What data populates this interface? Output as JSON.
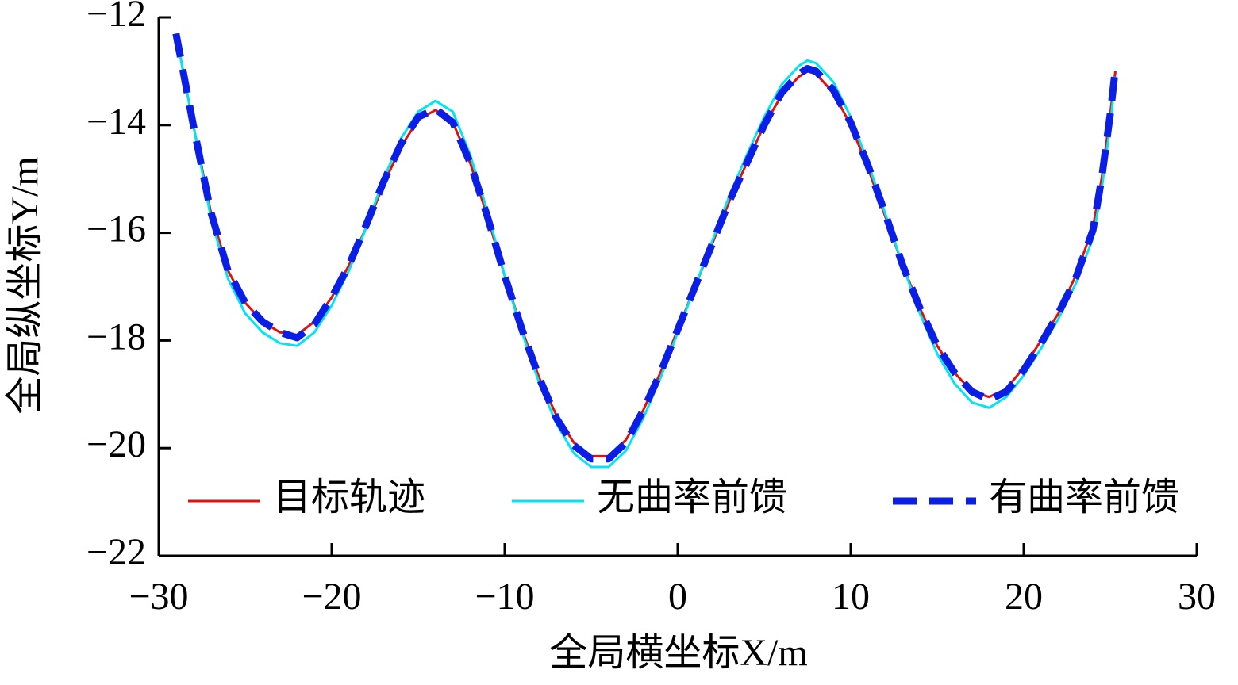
{
  "chart_data": {
    "type": "line",
    "xlabel": "全局横坐标X/m",
    "ylabel": "全局纵坐标Y/m",
    "x": [
      -29,
      -28,
      -27,
      -26,
      -25,
      -24,
      -23,
      -22,
      -21,
      -20,
      -19,
      -18,
      -17,
      -16,
      -15,
      -14,
      -13,
      -12,
      -11,
      -10,
      -9,
      -8,
      -7,
      -6,
      -5,
      -4,
      -3,
      -2,
      -1,
      0,
      1,
      2,
      3,
      4,
      5,
      6,
      7,
      7.5,
      8,
      9,
      10,
      11,
      12,
      13,
      14,
      15,
      16,
      17,
      18,
      19,
      20,
      21,
      22,
      23,
      24,
      24.5,
      25,
      25.3
    ],
    "series": [
      {
        "name": "目标轨迹",
        "color": "#e01010",
        "style": "solid",
        "values": [
          -12.3,
          -14.0,
          -15.6,
          -16.7,
          -17.3,
          -17.65,
          -17.85,
          -17.9,
          -17.65,
          -17.2,
          -16.6,
          -15.9,
          -15.1,
          -14.4,
          -13.9,
          -13.72,
          -13.95,
          -14.7,
          -15.7,
          -16.8,
          -17.8,
          -18.7,
          -19.4,
          -19.9,
          -20.15,
          -20.15,
          -19.85,
          -19.3,
          -18.6,
          -17.8,
          -17.0,
          -16.2,
          -15.4,
          -14.7,
          -14.0,
          -13.45,
          -13.1,
          -13.0,
          -13.05,
          -13.4,
          -14.0,
          -14.8,
          -15.7,
          -16.6,
          -17.4,
          -18.1,
          -18.6,
          -18.95,
          -19.05,
          -18.9,
          -18.5,
          -18.0,
          -17.5,
          -16.8,
          -15.9,
          -15.0,
          -13.8,
          -13.0
        ]
      },
      {
        "name": "无曲率前馈",
        "color": "#00e5f5",
        "style": "solid",
        "values": [
          -12.3,
          -14.0,
          -15.7,
          -16.85,
          -17.5,
          -17.85,
          -18.05,
          -18.1,
          -17.85,
          -17.35,
          -16.7,
          -15.9,
          -15.0,
          -14.25,
          -13.75,
          -13.55,
          -13.75,
          -14.55,
          -15.6,
          -16.8,
          -17.85,
          -18.8,
          -19.55,
          -20.1,
          -20.35,
          -20.35,
          -20.05,
          -19.45,
          -18.7,
          -17.85,
          -17.0,
          -16.15,
          -15.3,
          -14.55,
          -13.85,
          -13.25,
          -12.9,
          -12.8,
          -12.85,
          -13.2,
          -13.85,
          -14.7,
          -15.65,
          -16.6,
          -17.5,
          -18.25,
          -18.8,
          -19.15,
          -19.25,
          -19.05,
          -18.65,
          -18.15,
          -17.6,
          -16.95,
          -16.1,
          -15.2,
          -14.0,
          -13.1
        ]
      },
      {
        "name": "有曲率前馈",
        "color": "#0a1ee6",
        "style": "dashed",
        "values": [
          -12.3,
          -14.0,
          -15.6,
          -16.7,
          -17.3,
          -17.65,
          -17.85,
          -17.95,
          -17.7,
          -17.2,
          -16.6,
          -15.85,
          -15.05,
          -14.35,
          -13.85,
          -13.7,
          -13.95,
          -14.7,
          -15.7,
          -16.8,
          -17.8,
          -18.7,
          -19.45,
          -19.95,
          -20.2,
          -20.2,
          -19.9,
          -19.3,
          -18.6,
          -17.8,
          -17.0,
          -16.2,
          -15.4,
          -14.7,
          -14.0,
          -13.4,
          -13.05,
          -12.95,
          -13.0,
          -13.35,
          -13.95,
          -14.75,
          -15.65,
          -16.6,
          -17.4,
          -18.1,
          -18.6,
          -18.95,
          -19.1,
          -18.95,
          -18.55,
          -18.05,
          -17.5,
          -16.85,
          -15.95,
          -15.0,
          -13.8,
          -12.95
        ]
      }
    ],
    "xlim": [
      -30,
      30
    ],
    "xticks": [
      {
        "value": -30,
        "label": "−30"
      },
      {
        "value": -20,
        "label": "−20"
      },
      {
        "value": -10,
        "label": "−10"
      },
      0,
      10,
      20,
      30
    ],
    "ylim": [
      -22,
      -12
    ],
    "yticks": [
      {
        "value": -12,
        "label": "−12"
      },
      {
        "value": -14,
        "label": "−14"
      },
      {
        "value": -16,
        "label": "−16"
      },
      {
        "value": -18,
        "label": "−18"
      },
      {
        "value": -20,
        "label": "−20"
      },
      {
        "value": -22,
        "label": "−22"
      }
    ],
    "grid": false,
    "legend": "bottom"
  }
}
